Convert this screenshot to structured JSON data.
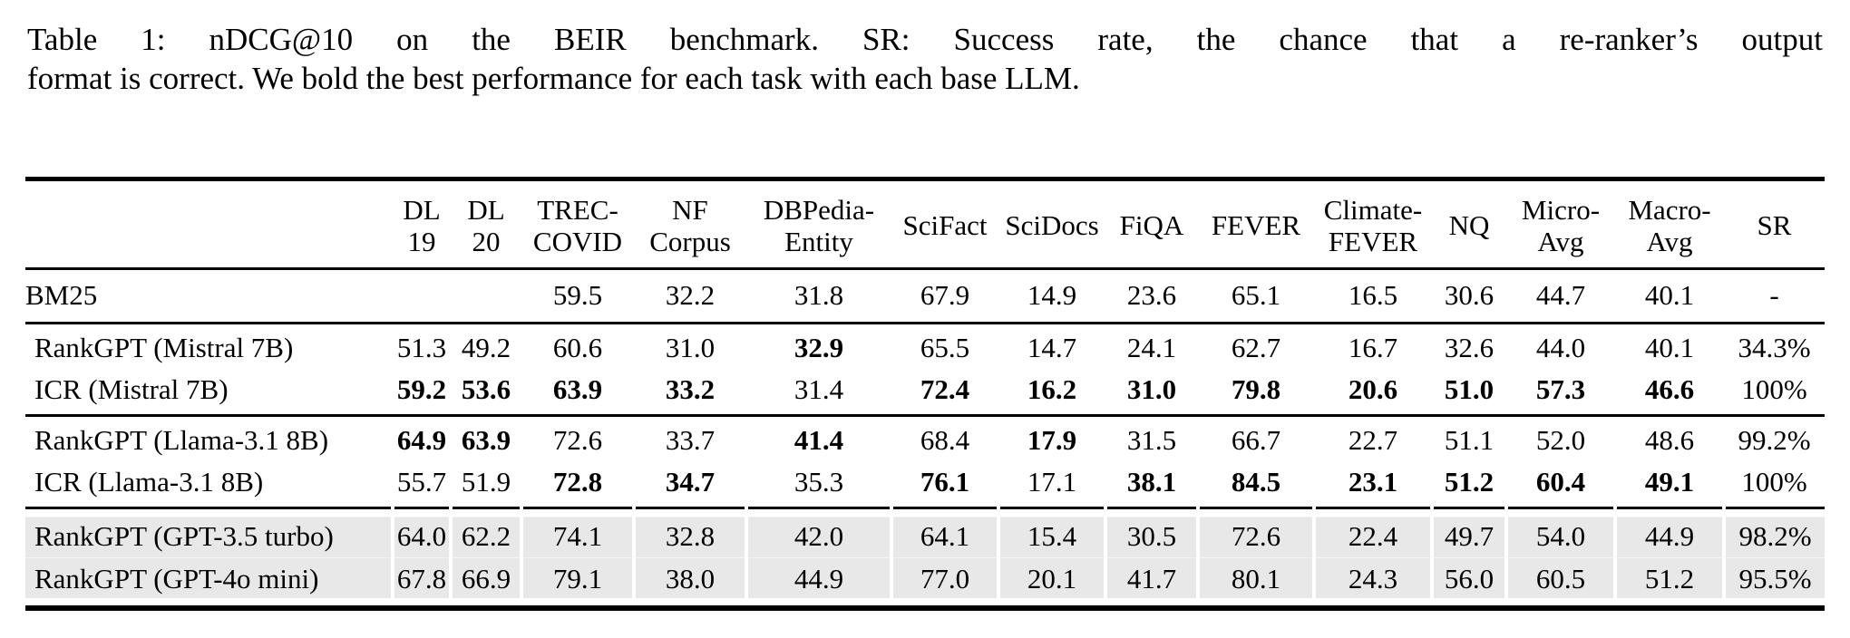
{
  "caption": {
    "line1": "Table 1: nDCG@10 on the BEIR benchmark. SR: Success rate, the chance that a re-ranker’s output",
    "line2": "format is correct. We bold the best performance for each task with each base LLM."
  },
  "colors": {
    "shaded_row": "#e8e8e8",
    "rule": "#000000",
    "text": "#000000"
  },
  "table": {
    "columns": [
      "",
      "DL\n19",
      "DL\n20",
      "TREC-\nCOVID",
      "NF\nCorpus",
      "DBPedia-\nEntity",
      "SciFact",
      "SciDocs",
      "FiQA",
      "FEVER",
      "Climate-\nFEVER",
      "NQ",
      "Micro-\nAvg",
      "Macro-\nAvg",
      "SR"
    ],
    "rows": [
      {
        "label": "BM25",
        "values": [
          "",
          "",
          "59.5",
          "32.2",
          "31.8",
          "67.9",
          "14.9",
          "23.6",
          "65.1",
          "16.5",
          "30.6",
          "44.7",
          "40.1",
          "-"
        ],
        "bold": [],
        "shaded": false,
        "rule_above": false,
        "tall": true
      },
      {
        "label": "RankGPT (Mistral 7B)",
        "values": [
          "51.3",
          "49.2",
          "60.6",
          "31.0",
          "32.9",
          "65.5",
          "14.7",
          "24.1",
          "62.7",
          "16.7",
          "32.6",
          "44.0",
          "40.1",
          "34.3%"
        ],
        "bold": [
          4
        ],
        "shaded": false,
        "rule_above": true
      },
      {
        "label": "ICR (Mistral 7B)",
        "values": [
          "59.2",
          "53.6",
          "63.9",
          "33.2",
          "31.4",
          "72.4",
          "16.2",
          "31.0",
          "79.8",
          "20.6",
          "51.0",
          "57.3",
          "46.6",
          "100%"
        ],
        "bold": [
          0,
          1,
          2,
          3,
          5,
          6,
          7,
          8,
          9,
          10,
          11,
          12
        ],
        "shaded": false,
        "rule_above": false,
        "group_end": true
      },
      {
        "label": "RankGPT (Llama-3.1 8B)",
        "values": [
          "64.9",
          "63.9",
          "72.6",
          "33.7",
          "41.4",
          "68.4",
          "17.9",
          "31.5",
          "66.7",
          "22.7",
          "51.1",
          "52.0",
          "48.6",
          "99.2%"
        ],
        "bold": [
          0,
          1,
          4,
          6
        ],
        "shaded": false,
        "rule_above": true
      },
      {
        "label": "ICR (Llama-3.1 8B)",
        "values": [
          "55.7",
          "51.9",
          "72.8",
          "34.7",
          "35.3",
          "76.1",
          "17.1",
          "38.1",
          "84.5",
          "23.1",
          "51.2",
          "60.4",
          "49.1",
          "100%"
        ],
        "bold": [
          2,
          3,
          5,
          7,
          8,
          9,
          10,
          11,
          12
        ],
        "shaded": false,
        "rule_above": false,
        "group_end": true
      },
      {
        "label": "RankGPT (GPT-3.5 turbo)",
        "values": [
          "64.0",
          "62.2",
          "74.1",
          "32.8",
          "42.0",
          "64.1",
          "15.4",
          "30.5",
          "72.6",
          "22.4",
          "49.7",
          "54.0",
          "44.9",
          "98.2%"
        ],
        "bold": [],
        "shaded": true,
        "shaded_first": true,
        "rule_above": true
      },
      {
        "label": "RankGPT (GPT-4o mini)",
        "values": [
          "67.8",
          "66.9",
          "79.1",
          "38.0",
          "44.9",
          "77.0",
          "20.1",
          "41.7",
          "80.1",
          "24.3",
          "56.0",
          "60.5",
          "51.2",
          "95.5%"
        ],
        "bold": [],
        "shaded": true,
        "shaded_last": true,
        "rule_above": false
      }
    ]
  }
}
